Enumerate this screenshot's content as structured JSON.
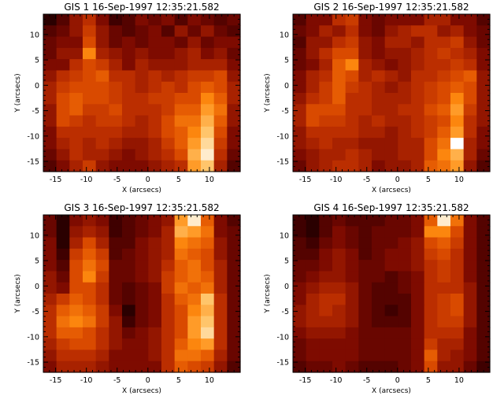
{
  "colormap": [
    "#000000",
    "#3c0000",
    "#780800",
    "#b42800",
    "#e05000",
    "#ff8c10",
    "#ffc870",
    "#ffffff"
  ],
  "panels": [
    {
      "title": "GIS 1 16-Sep-1997 12:35:21.582",
      "xlabel": "X (arcsecs)",
      "ylabel": "Y (arcsecs)",
      "xticks": [
        "-15",
        "-10",
        "-5",
        "0",
        "5",
        "10"
      ],
      "yticks": [
        "-15",
        "-10",
        "-5",
        "0",
        "5",
        "10"
      ],
      "grid": [
        [
          0.1,
          0.2,
          0.35,
          0.45,
          0.3,
          0.15,
          0.2,
          0.3,
          0.25,
          0.3,
          0.2,
          0.3,
          0.25,
          0.2,
          0.25
        ],
        [
          0.2,
          0.25,
          0.35,
          0.5,
          0.35,
          0.25,
          0.2,
          0.25,
          0.3,
          0.2,
          0.35,
          0.25,
          0.35,
          0.25,
          0.2
        ],
        [
          0.25,
          0.3,
          0.3,
          0.55,
          0.35,
          0.25,
          0.3,
          0.25,
          0.3,
          0.3,
          0.25,
          0.35,
          0.25,
          0.3,
          0.3
        ],
        [
          0.25,
          0.35,
          0.35,
          0.7,
          0.4,
          0.35,
          0.3,
          0.35,
          0.3,
          0.3,
          0.35,
          0.4,
          0.3,
          0.35,
          0.25
        ],
        [
          0.3,
          0.3,
          0.45,
          0.55,
          0.5,
          0.4,
          0.3,
          0.4,
          0.35,
          0.35,
          0.35,
          0.4,
          0.4,
          0.4,
          0.3
        ],
        [
          0.35,
          0.45,
          0.5,
          0.55,
          0.6,
          0.45,
          0.45,
          0.4,
          0.45,
          0.4,
          0.45,
          0.5,
          0.5,
          0.55,
          0.35
        ],
        [
          0.4,
          0.5,
          0.55,
          0.55,
          0.55,
          0.5,
          0.45,
          0.4,
          0.45,
          0.5,
          0.45,
          0.55,
          0.6,
          0.55,
          0.4
        ],
        [
          0.4,
          0.55,
          0.6,
          0.55,
          0.55,
          0.5,
          0.45,
          0.45,
          0.5,
          0.5,
          0.55,
          0.55,
          0.7,
          0.6,
          0.4
        ],
        [
          0.35,
          0.55,
          0.6,
          0.5,
          0.5,
          0.55,
          0.45,
          0.45,
          0.45,
          0.5,
          0.6,
          0.6,
          0.75,
          0.65,
          0.35
        ],
        [
          0.35,
          0.55,
          0.5,
          0.45,
          0.5,
          0.5,
          0.45,
          0.4,
          0.45,
          0.55,
          0.65,
          0.65,
          0.8,
          0.6,
          0.35
        ],
        [
          0.3,
          0.45,
          0.45,
          0.45,
          0.45,
          0.45,
          0.4,
          0.4,
          0.45,
          0.55,
          0.6,
          0.7,
          0.85,
          0.55,
          0.3
        ],
        [
          0.3,
          0.4,
          0.45,
          0.4,
          0.45,
          0.4,
          0.35,
          0.35,
          0.4,
          0.5,
          0.6,
          0.75,
          0.9,
          0.5,
          0.3
        ],
        [
          0.25,
          0.35,
          0.45,
          0.4,
          0.4,
          0.35,
          0.3,
          0.35,
          0.4,
          0.45,
          0.55,
          0.8,
          0.95,
          0.45,
          0.25
        ],
        [
          0.2,
          0.3,
          0.4,
          0.5,
          0.35,
          0.3,
          0.3,
          0.3,
          0.35,
          0.4,
          0.45,
          0.75,
          0.85,
          0.4,
          0.2
        ]
      ]
    },
    {
      "title": "GIS 2 16-Sep-1997 12:35:21.582",
      "xlabel": "X (arcsecs)",
      "ylabel": "Y (arcsecs)",
      "xticks": [
        "-15",
        "-10",
        "-5",
        "0",
        "5",
        "10"
      ],
      "yticks": [
        "-15",
        "-10",
        "-5",
        "0",
        "5",
        "10"
      ],
      "grid": [
        [
          0.2,
          0.3,
          0.3,
          0.45,
          0.5,
          0.3,
          0.25,
          0.3,
          0.3,
          0.3,
          0.4,
          0.4,
          0.3,
          0.3,
          0.2
        ],
        [
          0.25,
          0.3,
          0.4,
          0.35,
          0.45,
          0.3,
          0.25,
          0.35,
          0.4,
          0.45,
          0.45,
          0.35,
          0.4,
          0.3,
          0.25
        ],
        [
          0.2,
          0.35,
          0.35,
          0.45,
          0.5,
          0.35,
          0.3,
          0.4,
          0.4,
          0.35,
          0.45,
          0.45,
          0.5,
          0.35,
          0.25
        ],
        [
          0.25,
          0.35,
          0.45,
          0.55,
          0.55,
          0.35,
          0.3,
          0.35,
          0.35,
          0.4,
          0.45,
          0.5,
          0.45,
          0.4,
          0.3
        ],
        [
          0.25,
          0.3,
          0.4,
          0.6,
          0.7,
          0.4,
          0.35,
          0.3,
          0.35,
          0.4,
          0.45,
          0.45,
          0.5,
          0.45,
          0.3
        ],
        [
          0.3,
          0.4,
          0.45,
          0.6,
          0.55,
          0.4,
          0.45,
          0.4,
          0.35,
          0.45,
          0.45,
          0.5,
          0.55,
          0.6,
          0.35
        ],
        [
          0.3,
          0.4,
          0.5,
          0.6,
          0.5,
          0.45,
          0.4,
          0.35,
          0.4,
          0.45,
          0.5,
          0.55,
          0.6,
          0.55,
          0.35
        ],
        [
          0.35,
          0.45,
          0.5,
          0.6,
          0.45,
          0.45,
          0.4,
          0.4,
          0.4,
          0.45,
          0.5,
          0.55,
          0.7,
          0.55,
          0.35
        ],
        [
          0.4,
          0.55,
          0.55,
          0.55,
          0.45,
          0.45,
          0.4,
          0.4,
          0.45,
          0.45,
          0.55,
          0.6,
          0.75,
          0.5,
          0.35
        ],
        [
          0.4,
          0.55,
          0.5,
          0.5,
          0.45,
          0.4,
          0.45,
          0.4,
          0.4,
          0.45,
          0.5,
          0.55,
          0.7,
          0.45,
          0.35
        ],
        [
          0.35,
          0.45,
          0.45,
          0.45,
          0.45,
          0.4,
          0.4,
          0.35,
          0.4,
          0.45,
          0.5,
          0.6,
          0.75,
          0.45,
          0.3
        ],
        [
          0.35,
          0.4,
          0.45,
          0.4,
          0.4,
          0.35,
          0.35,
          0.35,
          0.4,
          0.4,
          0.55,
          0.65,
          1.0,
          0.4,
          0.3
        ],
        [
          0.3,
          0.35,
          0.4,
          0.4,
          0.45,
          0.4,
          0.35,
          0.35,
          0.4,
          0.4,
          0.55,
          0.7,
          0.8,
          0.4,
          0.25
        ],
        [
          0.25,
          0.35,
          0.4,
          0.45,
          0.45,
          0.4,
          0.3,
          0.35,
          0.35,
          0.4,
          0.6,
          0.65,
          0.75,
          0.35,
          0.2
        ]
      ]
    },
    {
      "title": "GIS 3 16-Sep-1997 12:35:21.582",
      "xlabel": "X (arcsecs)",
      "ylabel": "Y (arcsecs)",
      "xticks": [
        "-15",
        "-10",
        "-5",
        "0",
        "5",
        "10"
      ],
      "yticks": [
        "-15",
        "-10",
        "-5",
        "0",
        "5",
        "10"
      ],
      "grid": [
        [
          0.25,
          0.1,
          0.3,
          0.35,
          0.3,
          0.15,
          0.2,
          0.25,
          0.3,
          0.35,
          0.75,
          0.95,
          0.6,
          0.3,
          0.2
        ],
        [
          0.25,
          0.1,
          0.35,
          0.4,
          0.35,
          0.15,
          0.2,
          0.25,
          0.3,
          0.4,
          0.8,
          0.75,
          0.65,
          0.3,
          0.25
        ],
        [
          0.3,
          0.1,
          0.4,
          0.55,
          0.4,
          0.2,
          0.2,
          0.3,
          0.35,
          0.4,
          0.7,
          0.65,
          0.6,
          0.35,
          0.25
        ],
        [
          0.3,
          0.15,
          0.5,
          0.6,
          0.5,
          0.2,
          0.25,
          0.3,
          0.35,
          0.4,
          0.65,
          0.6,
          0.55,
          0.35,
          0.25
        ],
        [
          0.3,
          0.2,
          0.55,
          0.65,
          0.55,
          0.25,
          0.25,
          0.3,
          0.35,
          0.45,
          0.6,
          0.65,
          0.55,
          0.4,
          0.25
        ],
        [
          0.35,
          0.25,
          0.55,
          0.7,
          0.5,
          0.25,
          0.25,
          0.3,
          0.35,
          0.5,
          0.6,
          0.65,
          0.6,
          0.4,
          0.25
        ],
        [
          0.35,
          0.3,
          0.55,
          0.55,
          0.45,
          0.25,
          0.2,
          0.25,
          0.3,
          0.5,
          0.65,
          0.6,
          0.65,
          0.4,
          0.25
        ],
        [
          0.4,
          0.5,
          0.6,
          0.55,
          0.45,
          0.25,
          0.2,
          0.25,
          0.3,
          0.45,
          0.6,
          0.65,
          0.85,
          0.45,
          0.25
        ],
        [
          0.45,
          0.6,
          0.65,
          0.6,
          0.5,
          0.3,
          0.1,
          0.25,
          0.3,
          0.45,
          0.55,
          0.7,
          0.8,
          0.45,
          0.25
        ],
        [
          0.45,
          0.65,
          0.7,
          0.65,
          0.5,
          0.35,
          0.15,
          0.25,
          0.3,
          0.45,
          0.55,
          0.75,
          0.85,
          0.45,
          0.25
        ],
        [
          0.45,
          0.6,
          0.6,
          0.55,
          0.45,
          0.35,
          0.25,
          0.3,
          0.35,
          0.45,
          0.55,
          0.75,
          0.9,
          0.45,
          0.25
        ],
        [
          0.4,
          0.5,
          0.55,
          0.55,
          0.45,
          0.35,
          0.3,
          0.3,
          0.35,
          0.45,
          0.6,
          0.7,
          0.75,
          0.45,
          0.25
        ],
        [
          0.35,
          0.45,
          0.45,
          0.45,
          0.4,
          0.3,
          0.3,
          0.3,
          0.35,
          0.45,
          0.65,
          0.65,
          0.6,
          0.4,
          0.25
        ],
        [
          0.3,
          0.4,
          0.4,
          0.4,
          0.35,
          0.3,
          0.3,
          0.3,
          0.3,
          0.45,
          0.6,
          0.55,
          0.5,
          0.35,
          0.2
        ]
      ]
    },
    {
      "title": "GIS 4 16-Sep-1997 12:35:21.582",
      "xlabel": "X (arcsecs)",
      "ylabel": "Y (arcsecs)",
      "xticks": [
        "-15",
        "-10",
        "-5",
        "0",
        "5",
        "10"
      ],
      "yticks": [
        "-15",
        "-10",
        "-5",
        "0",
        "5",
        "10"
      ],
      "grid": [
        [
          0.15,
          0.1,
          0.2,
          0.25,
          0.2,
          0.2,
          0.2,
          0.25,
          0.25,
          0.3,
          0.6,
          0.95,
          0.65,
          0.3,
          0.2
        ],
        [
          0.15,
          0.1,
          0.2,
          0.3,
          0.25,
          0.2,
          0.25,
          0.25,
          0.25,
          0.3,
          0.7,
          0.7,
          0.55,
          0.3,
          0.2
        ],
        [
          0.2,
          0.15,
          0.25,
          0.3,
          0.25,
          0.2,
          0.25,
          0.25,
          0.3,
          0.35,
          0.55,
          0.6,
          0.5,
          0.3,
          0.2
        ],
        [
          0.2,
          0.2,
          0.3,
          0.35,
          0.3,
          0.2,
          0.25,
          0.3,
          0.3,
          0.35,
          0.5,
          0.55,
          0.45,
          0.3,
          0.2
        ],
        [
          0.25,
          0.25,
          0.3,
          0.35,
          0.3,
          0.25,
          0.25,
          0.3,
          0.3,
          0.35,
          0.45,
          0.5,
          0.45,
          0.3,
          0.2
        ],
        [
          0.25,
          0.3,
          0.35,
          0.35,
          0.3,
          0.25,
          0.25,
          0.2,
          0.25,
          0.3,
          0.45,
          0.5,
          0.45,
          0.3,
          0.2
        ],
        [
          0.3,
          0.35,
          0.4,
          0.4,
          0.35,
          0.25,
          0.2,
          0.2,
          0.25,
          0.3,
          0.45,
          0.45,
          0.45,
          0.35,
          0.2
        ],
        [
          0.3,
          0.4,
          0.45,
          0.45,
          0.35,
          0.25,
          0.2,
          0.2,
          0.2,
          0.3,
          0.45,
          0.5,
          0.55,
          0.35,
          0.2
        ],
        [
          0.35,
          0.4,
          0.45,
          0.4,
          0.35,
          0.25,
          0.2,
          0.15,
          0.2,
          0.3,
          0.45,
          0.5,
          0.55,
          0.35,
          0.2
        ],
        [
          0.35,
          0.4,
          0.4,
          0.4,
          0.35,
          0.25,
          0.2,
          0.2,
          0.2,
          0.3,
          0.45,
          0.5,
          0.5,
          0.35,
          0.2
        ],
        [
          0.3,
          0.35,
          0.35,
          0.35,
          0.3,
          0.25,
          0.25,
          0.25,
          0.25,
          0.3,
          0.45,
          0.45,
          0.45,
          0.3,
          0.2
        ],
        [
          0.25,
          0.3,
          0.3,
          0.3,
          0.3,
          0.25,
          0.25,
          0.25,
          0.25,
          0.3,
          0.5,
          0.4,
          0.4,
          0.3,
          0.2
        ],
        [
          0.25,
          0.3,
          0.3,
          0.3,
          0.3,
          0.25,
          0.25,
          0.25,
          0.25,
          0.3,
          0.6,
          0.4,
          0.35,
          0.3,
          0.2
        ],
        [
          0.2,
          0.25,
          0.25,
          0.3,
          0.25,
          0.2,
          0.2,
          0.2,
          0.25,
          0.3,
          0.55,
          0.35,
          0.35,
          0.25,
          0.15
        ]
      ]
    }
  ]
}
